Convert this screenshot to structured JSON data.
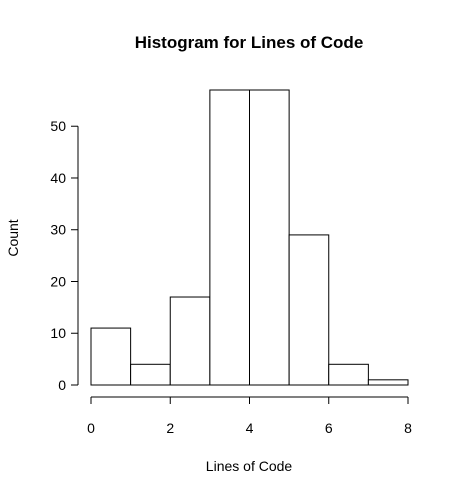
{
  "chart_data": {
    "type": "bar",
    "title": "Histogram for Lines of Code",
    "xlabel": "Lines of Code",
    "ylabel": "Count",
    "bins": [
      {
        "start": 0,
        "end": 1,
        "count": 11
      },
      {
        "start": 1,
        "end": 2,
        "count": 4
      },
      {
        "start": 2,
        "end": 3,
        "count": 17
      },
      {
        "start": 3,
        "end": 4,
        "count": 57
      },
      {
        "start": 4,
        "end": 5,
        "count": 57
      },
      {
        "start": 5,
        "end": 6,
        "count": 29
      },
      {
        "start": 6,
        "end": 7,
        "count": 4
      },
      {
        "start": 7,
        "end": 8,
        "count": 1
      }
    ],
    "xlim": [
      0,
      8
    ],
    "ylim": [
      0,
      57
    ],
    "x_ticks": [
      0,
      2,
      4,
      6,
      8
    ],
    "y_ticks": [
      0,
      10,
      20,
      30,
      40,
      50
    ],
    "grid": false,
    "colors": {
      "bar_fill": "#ffffff",
      "bar_stroke": "#000000"
    }
  }
}
